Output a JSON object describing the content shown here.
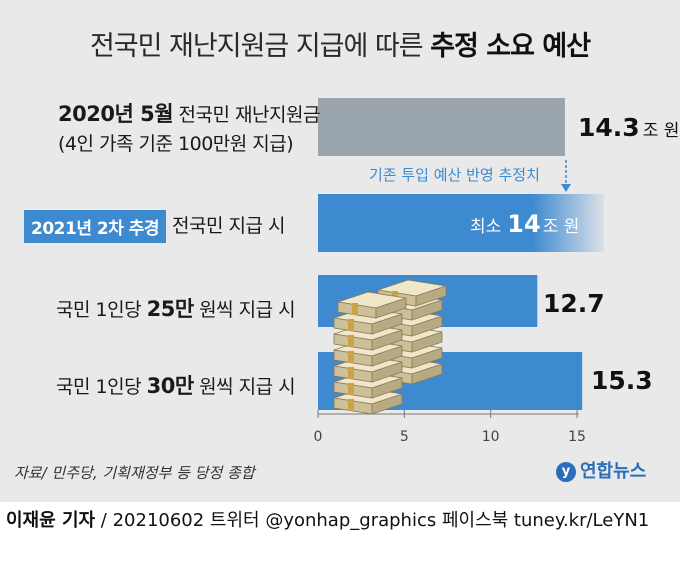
{
  "title": {
    "normal": "전국민 재난지원금 지급에 따른 ",
    "bold": "추정 소요 예산"
  },
  "chart_data": {
    "type": "bar",
    "orientation": "horizontal",
    "xlim": [
      0,
      15
    ],
    "ticks": [
      "0",
      "5",
      "10",
      "15"
    ],
    "values": [
      14.3,
      14,
      12.7,
      15.3
    ],
    "value_labels": [
      "14.3",
      "14",
      "12.7",
      "15.3"
    ],
    "colors": [
      "#9aa5ad",
      "#3d8ad0",
      "#3d8ad0",
      "#3d8ad0"
    ],
    "categories": [
      {
        "line1_bold": "2020년 5월",
        "line1": " 전국민 재난지원금",
        "line2": "(4인 가족 기준 100만원 지급)"
      },
      {
        "tag": "2021년 2차 추경",
        "text": "전국민 지급 시"
      },
      {
        "pre": "국민 1인당 ",
        "bold": "25만",
        "post": " 원씩 지급 시"
      },
      {
        "pre": "국민 1인당 ",
        "bold": "30만",
        "post": " 원씩 지급 시"
      }
    ],
    "units": {
      "first": "조 원",
      "second_prefix": "최소",
      "second_unit": "조 원"
    },
    "annotation": "기존 투입 예산 반영 추정치"
  },
  "source": "자료/ 민주당, 기획재정부 등 당정 종합",
  "logo": {
    "mark": "y",
    "text": "연합뉴스"
  },
  "footer": {
    "reporter": "이재윤 기자",
    "rest": " / 20210602   트위터 @yonhap_graphics  페이스북 tuney.kr/LeYN1"
  },
  "icons": {
    "money": "money-stack-illustration"
  }
}
